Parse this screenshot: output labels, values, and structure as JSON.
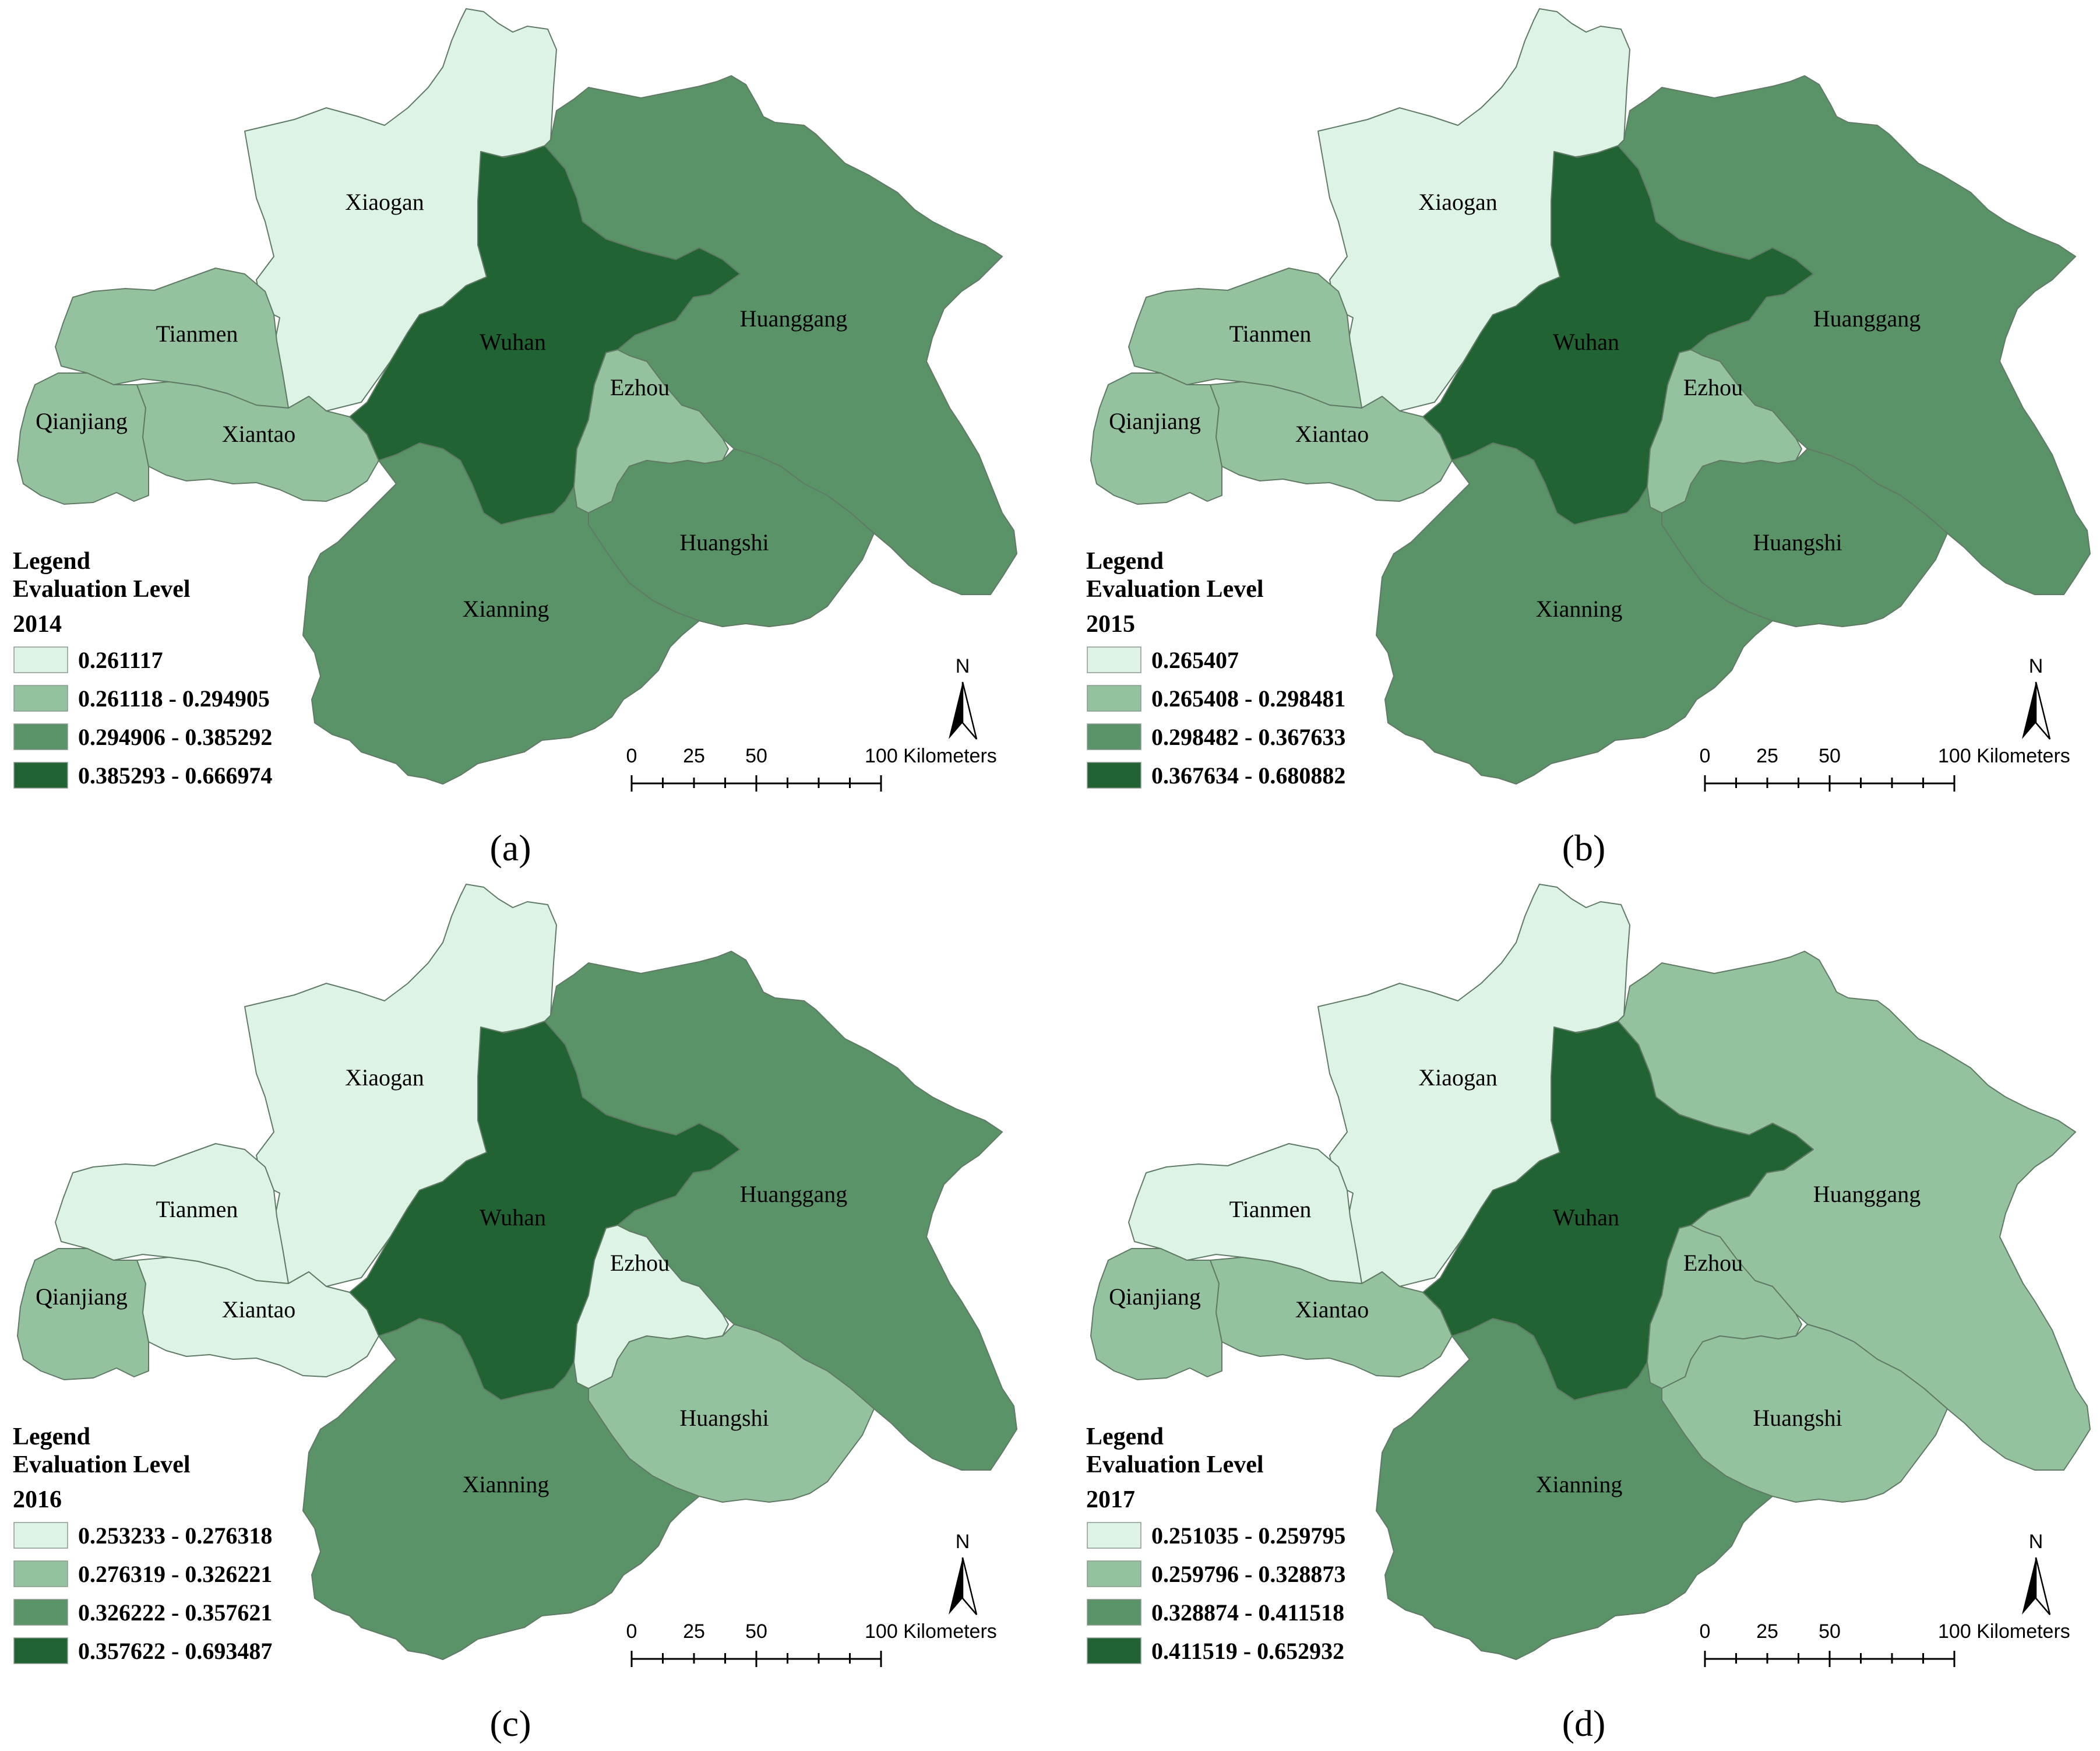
{
  "colors": {
    "level1": "#dcf3e6",
    "level2": "#94c19e",
    "level3": "#5a9368",
    "level4": "#226334",
    "border": "#607a66"
  },
  "panels": [
    {
      "label": "(a)",
      "legend": {
        "title1": "Legend",
        "title2": "Evaluation Level",
        "year": "2014",
        "classes": [
          "0.261117",
          "0.261118 - 0.294905",
          "0.294906 - 0.385292",
          "0.385293 - 0.666974"
        ]
      },
      "regions": {
        "Xiaogan": 1,
        "Tianmen": 2,
        "Qianjiang": 2,
        "Xiantao": 2,
        "Wuhan": 4,
        "Ezhou": 2,
        "Huanggang": 3,
        "Huangshi": 3,
        "Xianning": 3
      },
      "scale": {
        "ticks": [
          "0",
          "25",
          "50",
          "100 Kilometers"
        ]
      },
      "north": "N"
    },
    {
      "label": "(b)",
      "legend": {
        "title1": "Legend",
        "title2": "Evaluation Level",
        "year": "2015",
        "classes": [
          "0.265407",
          "0.265408 - 0.298481",
          "0.298482 - 0.367633",
          "0.367634 - 0.680882"
        ]
      },
      "regions": {
        "Xiaogan": 1,
        "Tianmen": 2,
        "Qianjiang": 2,
        "Xiantao": 2,
        "Wuhan": 4,
        "Ezhou": 2,
        "Huanggang": 3,
        "Huangshi": 3,
        "Xianning": 3
      },
      "scale": {
        "ticks": [
          "0",
          "25",
          "50",
          "100 Kilometers"
        ]
      },
      "north": "N"
    },
    {
      "label": "(c)",
      "legend": {
        "title1": "Legend",
        "title2": "Evaluation Level",
        "year": "2016",
        "classes": [
          "0.253233 - 0.276318",
          "0.276319 - 0.326221",
          "0.326222 - 0.357621",
          "0.357622 - 0.693487"
        ]
      },
      "regions": {
        "Xiaogan": 1,
        "Tianmen": 1,
        "Qianjiang": 2,
        "Xiantao": 1,
        "Wuhan": 4,
        "Ezhou": 1,
        "Huanggang": 3,
        "Huangshi": 2,
        "Xianning": 3
      },
      "scale": {
        "ticks": [
          "0",
          "25",
          "50",
          "100 Kilometers"
        ]
      },
      "north": "N"
    },
    {
      "label": "(d)",
      "legend": {
        "title1": "Legend",
        "title2": "Evaluation Level",
        "year": "2017",
        "classes": [
          "0.251035 - 0.259795",
          "0.259796 - 0.328873",
          "0.328874 - 0.411518",
          "0.411519 - 0.652932"
        ]
      },
      "regions": {
        "Xiaogan": 1,
        "Tianmen": 1,
        "Qianjiang": 2,
        "Xiantao": 2,
        "Wuhan": 4,
        "Ezhou": 2,
        "Huanggang": 2,
        "Huangshi": 2,
        "Xianning": 3
      },
      "scale": {
        "ticks": [
          "0",
          "25",
          "50",
          "100 Kilometers"
        ]
      },
      "north": "N"
    }
  ]
}
